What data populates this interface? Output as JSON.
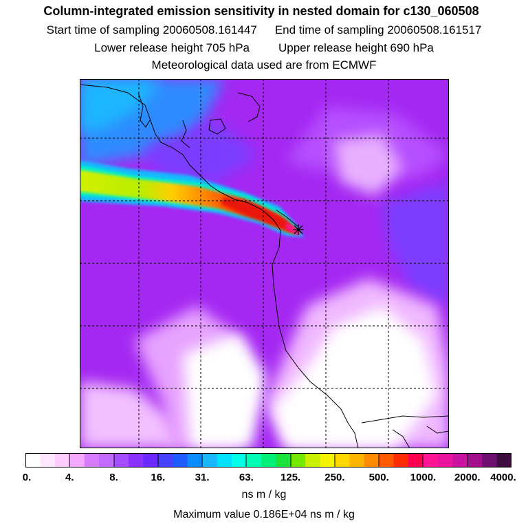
{
  "header": {
    "title": "Column-integrated emission sensitivity in nested domain for c130_060508",
    "start_label": "Start time of sampling 20060508.161447",
    "end_label": "End time of sampling 20060508.161517",
    "lower_label": "Lower release height  705 hPa",
    "upper_label": "Upper release height  690 hPa",
    "met_label": "Meteorological data used are from ECMWF"
  },
  "colorbar": {
    "colors": [
      "#ffffff",
      "#ffe6ff",
      "#ffccff",
      "#f5a8ff",
      "#d77bff",
      "#c26bff",
      "#a64dff",
      "#8a33ff",
      "#6b28ff",
      "#4640ff",
      "#1f5cff",
      "#0a8cff",
      "#19b8ff",
      "#00e1ff",
      "#00ffe6",
      "#00ffb4",
      "#00f07a",
      "#19e33c",
      "#74e800",
      "#c8f000",
      "#f4f400",
      "#ffd800",
      "#ffb400",
      "#ff8c00",
      "#ff5a00",
      "#ff2a00",
      "#ff0050",
      "#ff1493",
      "#e8149e",
      "#c812a0",
      "#a0108c",
      "#6e0e6e",
      "#3d0b3d"
    ],
    "tick_labels": [
      "0.",
      "4.",
      "8.",
      "16.",
      "31.",
      "63.",
      "125.",
      "250.",
      "500.",
      "1000.",
      "2000.",
      "4000."
    ],
    "units": "ns m / kg"
  },
  "max_value_text": "Maximum value  0.186E+04 ns m / kg",
  "map": {
    "background_color": "#a020f0",
    "plume_colors": [
      "#2f9cff",
      "#00e6ff",
      "#c8f000",
      "#ff8c00",
      "#ff0000",
      "#ff1493"
    ],
    "receptor_marker": "star-marker"
  }
}
